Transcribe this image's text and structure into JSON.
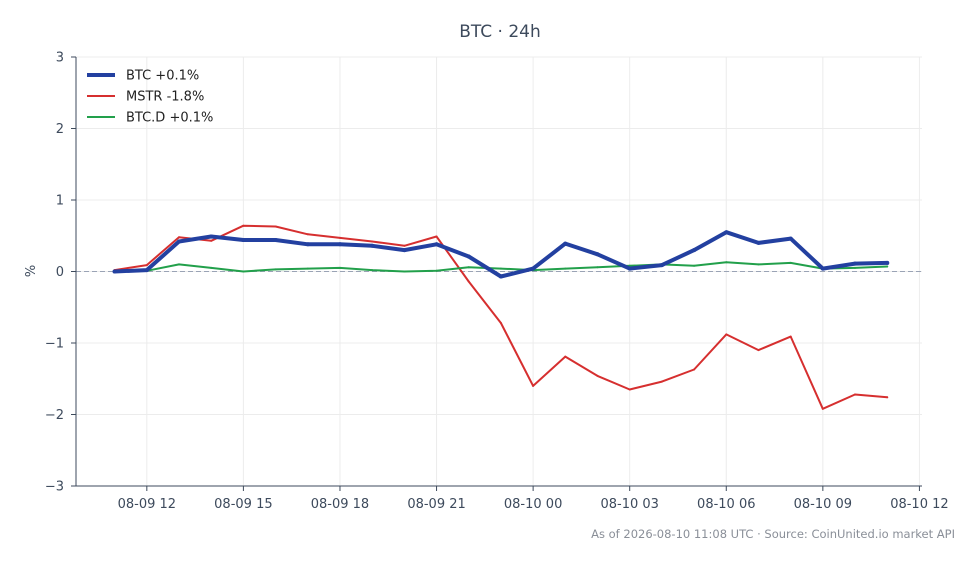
{
  "chart_data": {
    "type": "line",
    "title": "BTC · 24h",
    "xlabel": "",
    "ylabel": "%",
    "ylim": [
      -3,
      3
    ],
    "grid": true,
    "legend_position": "top-left",
    "y_ticks": [
      3,
      2,
      1,
      0,
      -1,
      -2,
      -3
    ],
    "y_tick_labels": [
      "3",
      "2",
      "1",
      "0",
      "−1",
      "−2",
      "−3"
    ],
    "x_ticks": [
      "2026-08-09 12:00",
      "2026-08-09 15:00",
      "2026-08-09 18:00",
      "2026-08-09 21:00",
      "2026-08-10 00:00",
      "2026-08-10 03:00",
      "2026-08-10 06:00",
      "2026-08-10 09:00",
      "2026-08-10 12:00"
    ],
    "x_tick_labels": [
      "08-09 12",
      "08-09 15",
      "08-09 18",
      "08-09 21",
      "08-10 00",
      "08-10 03",
      "08-10 06",
      "08-10 09",
      "08-10 12"
    ],
    "x": [
      "2026-08-09 11:00",
      "2026-08-09 12:00",
      "2026-08-09 13:00",
      "2026-08-09 14:00",
      "2026-08-09 15:00",
      "2026-08-09 16:00",
      "2026-08-09 17:00",
      "2026-08-09 18:00",
      "2026-08-09 19:00",
      "2026-08-09 20:00",
      "2026-08-09 21:00",
      "2026-08-09 22:00",
      "2026-08-09 23:00",
      "2026-08-10 00:00",
      "2026-08-10 01:00",
      "2026-08-10 02:00",
      "2026-08-10 03:00",
      "2026-08-10 04:00",
      "2026-08-10 05:00",
      "2026-08-10 06:00",
      "2026-08-10 07:00",
      "2026-08-10 08:00",
      "2026-08-10 09:00",
      "2026-08-10 10:00",
      "2026-08-10 11:00"
    ],
    "reference_line": 0,
    "series": [
      {
        "name": "BTC +0.1%",
        "color": "#2340a0",
        "values": [
          0.0,
          0.02,
          0.42,
          0.49,
          0.44,
          0.44,
          0.38,
          0.38,
          0.36,
          0.3,
          0.38,
          0.21,
          -0.07,
          0.04,
          0.39,
          0.24,
          0.04,
          0.09,
          0.3,
          0.55,
          0.4,
          0.46,
          0.04,
          0.11,
          0.12
        ]
      },
      {
        "name": "MSTR -1.8%",
        "color": "#d62f2f",
        "values": [
          0.02,
          0.09,
          0.48,
          0.43,
          0.64,
          0.63,
          0.52,
          0.47,
          0.42,
          0.36,
          0.49,
          -0.14,
          -0.72,
          -1.6,
          -1.19,
          -1.46,
          -1.65,
          -1.54,
          -1.37,
          -0.88,
          -1.1,
          -0.91,
          -1.92,
          -1.72,
          -1.76
        ]
      },
      {
        "name": "BTC.D +0.1%",
        "color": "#22a04b",
        "values": [
          0.01,
          0.01,
          0.1,
          0.05,
          0.0,
          0.03,
          0.04,
          0.05,
          0.02,
          0.0,
          0.01,
          0.06,
          0.04,
          0.02,
          0.04,
          0.06,
          0.08,
          0.1,
          0.08,
          0.13,
          0.1,
          0.12,
          0.04,
          0.05,
          0.07
        ]
      }
    ]
  },
  "footer": "As of 2026-08-10 11:08 UTC · Source: CoinUnited.io market API"
}
